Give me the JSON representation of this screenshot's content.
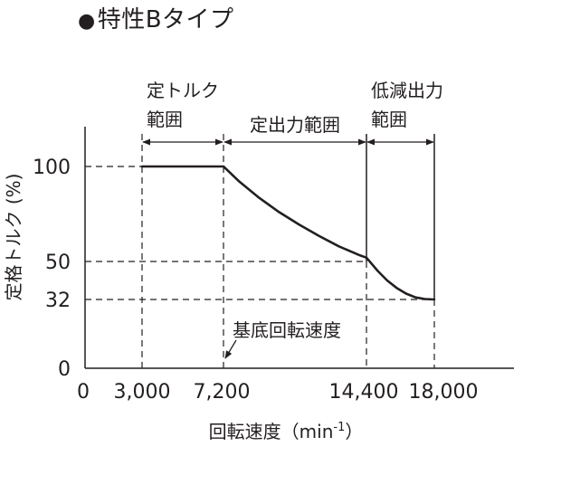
{
  "title": "特性Bタイプ",
  "title_bullet": "●",
  "chart_data": {
    "type": "line",
    "title": "特性Bタイプ",
    "xlabel": "回転速度（min-1）",
    "xlabel_main": "回転速度（min",
    "xlabel_sup": "-1",
    "xlabel_close": "）",
    "ylabel": "定格トルク (%)",
    "x_ticks": [
      0,
      3000,
      7200,
      14400,
      18000
    ],
    "x_tick_labels": [
      "0",
      "3,000",
      "7,200",
      "14,400",
      "18,000"
    ],
    "y_ticks": [
      0,
      32,
      50,
      100
    ],
    "y_tick_labels": [
      "0",
      "32",
      "50",
      "100"
    ],
    "xlim": [
      0,
      22000
    ],
    "ylim": [
      0,
      120
    ],
    "grid": false,
    "series": [
      {
        "x": [
          3000,
          7200,
          8000,
          9000,
          10000,
          11000,
          12000,
          13000,
          14000,
          14400,
          15000,
          15500,
          16000,
          16500,
          17000,
          17500,
          18000
        ],
        "y": [
          100,
          100,
          92,
          83.5,
          76,
          69.5,
          63.5,
          58,
          53.5,
          52,
          45.5,
          41,
          37.5,
          34.8,
          33,
          32.2,
          32
        ]
      }
    ],
    "regions": [
      {
        "label_lines": [
          "定トルク",
          "範囲"
        ],
        "x_start": 3000,
        "x_end": 7200
      },
      {
        "label_lines": [
          "定出力範囲"
        ],
        "x_start": 7200,
        "x_end": 14400
      },
      {
        "label_lines": [
          "低減出力",
          "範囲"
        ],
        "x_start": 14400,
        "x_end": 18000
      }
    ],
    "annotations": [
      {
        "text": "基底回転速度",
        "x": 7200,
        "y": 0
      }
    ]
  }
}
